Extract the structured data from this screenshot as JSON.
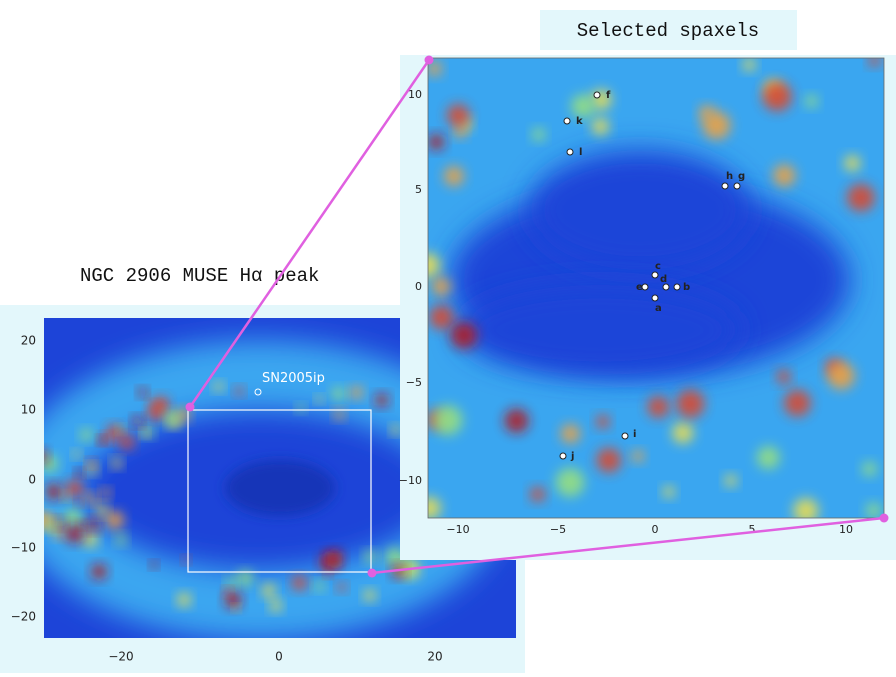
{
  "title": "Selected spaxels",
  "caption": "NGC 2906 MUSE Hα peak",
  "overview": {
    "annotation": "SN2005ip",
    "y_ticks": [
      "20",
      "10",
      "0",
      "−10",
      "−20"
    ],
    "x_ticks": [
      "−20",
      "0",
      "20"
    ]
  },
  "zoom": {
    "y_ticks": [
      "10",
      "5",
      "0",
      "−5",
      "−10"
    ],
    "x_ticks": [
      "−10",
      "−5",
      "0",
      "5",
      "10"
    ],
    "spaxels": [
      "f",
      "k",
      "l",
      "h",
      "g",
      "c",
      "e",
      "d",
      "b",
      "a",
      "i",
      "j"
    ]
  }
}
